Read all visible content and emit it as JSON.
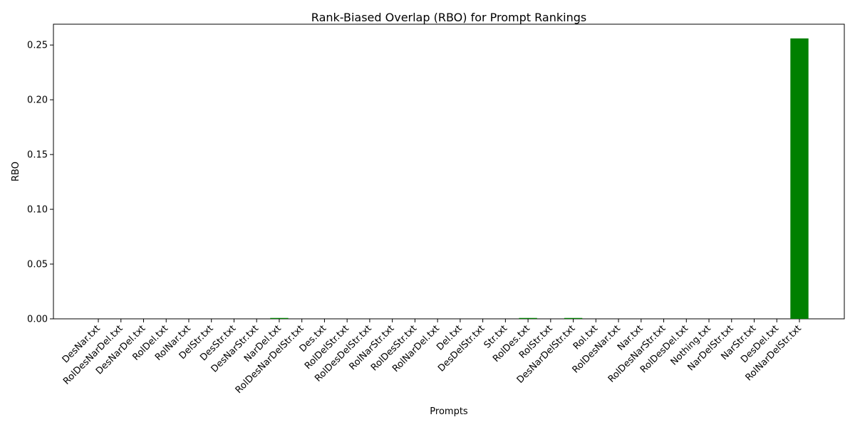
{
  "chart_data": {
    "type": "bar",
    "title": "Rank-Biased Overlap (RBO) for Prompt Rankings",
    "xlabel": "Prompts",
    "ylabel": "RBO",
    "categories": [
      "DesNar.txt",
      "RolDesNarDel.txt",
      "DesNarDel.txt",
      "RolDel.txt",
      "RolNar.txt",
      "DelStr.txt",
      "DesStr.txt",
      "DesNarStr.txt",
      "NarDel.txt",
      "RolDesNarDelStr.txt",
      "Des.txt",
      "RolDelStr.txt",
      "RolDesDelStr.txt",
      "RolNarStr.txt",
      "RolDesStr.txt",
      "RolNarDel.txt",
      "Del.txt",
      "DesDelStr.txt",
      "Str.txt",
      "RolDes.txt",
      "RolStr.txt",
      "DesNarDelStr.txt",
      "Rol.txt",
      "RolDesNar.txt",
      "Nar.txt",
      "RolDesNarStr.txt",
      "RolDesDel.txt",
      "Nothing.txt",
      "NarDelStr.txt",
      "NarStr.txt",
      "DesDel.txt",
      "RolNarDelStr.txt"
    ],
    "values": [
      0,
      0,
      0,
      0,
      0,
      0,
      0,
      0,
      0.0008,
      0,
      0,
      0,
      0,
      0,
      0,
      0,
      0,
      0,
      0,
      0.0008,
      0,
      0.0008,
      0,
      0,
      0,
      0,
      0,
      0,
      0,
      0,
      0,
      0.256
    ],
    "bar_color": "#008000",
    "ylim": [
      0,
      0.269
    ],
    "yticks": [
      "0.00",
      "0.05",
      "0.10",
      "0.15",
      "0.20",
      "0.25"
    ],
    "grid": false,
    "legend": "none"
  }
}
